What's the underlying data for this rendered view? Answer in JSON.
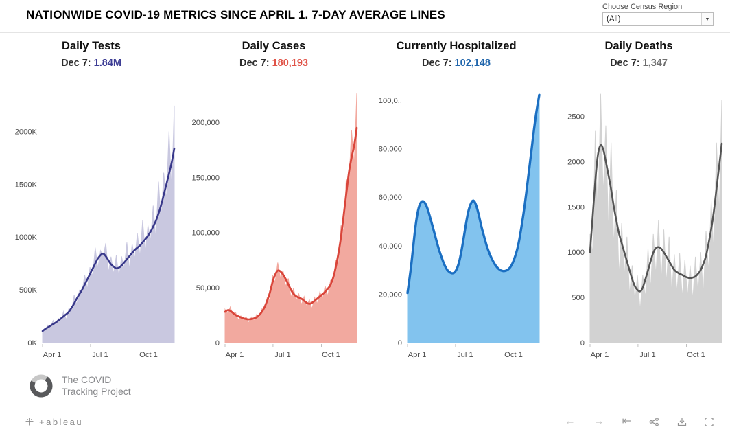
{
  "title": "NATIONWIDE COVID-19 METRICS SINCE APRIL 1. 7-DAY AVERAGE LINES",
  "region_filter": {
    "label": "Choose Census Region",
    "value": "(All)"
  },
  "chart_data": [
    {
      "type": "area",
      "title": "Daily Tests",
      "date_label": "Dec 7:",
      "value": "1.84M",
      "value_color": "#3c3c94",
      "line_color": "#38388a",
      "fill_color": "#c9c8e0",
      "line_width": 2.6,
      "y_unit": "thousands",
      "ymax": 2400,
      "y_ticks": [
        {
          "v": 0,
          "label": "0K"
        },
        {
          "v": 500,
          "label": "500K"
        },
        {
          "v": 1000,
          "label": "1000K"
        },
        {
          "v": 1500,
          "label": "1500K"
        },
        {
          "v": 2000,
          "label": "2000K"
        }
      ],
      "x_ticks": [
        {
          "f": 0.0,
          "label": "Apr 1"
        },
        {
          "f": 0.364,
          "label": "Jul 1"
        },
        {
          "f": 0.732,
          "label": "Oct 1"
        }
      ],
      "x_start": "Apr 1",
      "x_end": "Dec 7",
      "avg_7day": [
        110,
        130,
        145,
        160,
        175,
        190,
        210,
        230,
        250,
        270,
        290,
        330,
        370,
        420,
        460,
        500,
        550,
        600,
        650,
        700,
        750,
        800,
        830,
        850,
        820,
        780,
        740,
        720,
        700,
        710,
        730,
        760,
        790,
        820,
        850,
        880,
        900,
        920,
        950,
        980,
        1010,
        1050,
        1100,
        1150,
        1220,
        1300,
        1400,
        1500,
        1600,
        1700,
        1840
      ],
      "daily_noise": [
        1.05,
        0.82,
        1.15,
        0.9,
        1.2,
        0.85,
        1.1,
        0.93,
        1.18,
        0.8,
        1.12,
        0.9,
        1.22,
        0.86,
        1.08,
        0.95,
        1.17,
        0.84,
        1.1,
        0.9,
        1.2,
        0.88,
        1.05,
        0.96,
        1.15,
        0.85,
        1.1,
        0.9,
        1.18,
        0.86,
        1.12,
        0.92,
        1.2,
        0.84,
        1.1,
        0.9,
        1.15,
        0.88,
        1.22,
        0.86,
        1.1,
        0.92,
        1.18,
        0.85,
        1.25,
        0.88,
        1.15,
        0.9,
        1.25,
        0.85,
        1.22
      ]
    },
    {
      "type": "area",
      "title": "Daily Cases",
      "date_label": "Dec 7:",
      "value": "180,193",
      "value_color": "#e05348",
      "line_color": "#d9453a",
      "fill_color": "#f2a99f",
      "line_width": 2.8,
      "ymax": 230000,
      "y_ticks": [
        {
          "v": 0,
          "label": "0"
        },
        {
          "v": 50000,
          "label": "50,000"
        },
        {
          "v": 100000,
          "label": "100,000"
        },
        {
          "v": 150000,
          "label": "150,000"
        },
        {
          "v": 200000,
          "label": "200,000"
        }
      ],
      "x_ticks": [
        {
          "f": 0.0,
          "label": "Apr 1"
        },
        {
          "f": 0.364,
          "label": "Jul 1"
        },
        {
          "f": 0.732,
          "label": "Oct 1"
        }
      ],
      "x_start": "Apr 1",
      "x_end": "Dec 7",
      "avg_7day": [
        28000,
        30000,
        29000,
        27000,
        25000,
        24000,
        23000,
        22000,
        21500,
        21000,
        21500,
        22000,
        23000,
        25000,
        28000,
        32000,
        38000,
        45000,
        55000,
        62000,
        66000,
        65000,
        62000,
        58000,
        53000,
        48000,
        44000,
        42000,
        41000,
        40000,
        38000,
        36000,
        35000,
        36000,
        38000,
        40000,
        42000,
        44000,
        46000,
        49000,
        52000,
        58000,
        68000,
        80000,
        95000,
        115000,
        135000,
        155000,
        168000,
        178000,
        195000
      ],
      "daily_noise": [
        1.08,
        0.88,
        1.12,
        0.9,
        1.1,
        0.86,
        1.06,
        0.92,
        1.1,
        0.85,
        1.08,
        0.9,
        1.12,
        0.86,
        1.1,
        0.92,
        1.08,
        0.85,
        1.12,
        0.88,
        1.1,
        0.9,
        1.06,
        0.88,
        1.1,
        0.85,
        1.12,
        0.9,
        1.08,
        0.86,
        1.1,
        0.9,
        1.12,
        0.85,
        1.08,
        0.88,
        1.1,
        0.9,
        1.12,
        0.86,
        1.08,
        0.9,
        1.1,
        0.85,
        1.12,
        0.88,
        1.1,
        0.92,
        1.15,
        0.9,
        1.16
      ]
    },
    {
      "type": "area",
      "title": "Currently Hospitalized",
      "date_label": "Dec 7:",
      "value": "102,148",
      "value_color": "#2166ac",
      "line_color": "#1b6fc2",
      "fill_color": "#82c3ee",
      "line_width": 3.4,
      "ymax": 104500,
      "y_ticks": [
        {
          "v": 0,
          "label": "0"
        },
        {
          "v": 20000,
          "label": "20,000"
        },
        {
          "v": 40000,
          "label": "40,000"
        },
        {
          "v": 60000,
          "label": "60,000"
        },
        {
          "v": 80000,
          "label": "80,000"
        },
        {
          "v": 100000,
          "label": "100,0.."
        }
      ],
      "x_ticks": [
        {
          "f": 0.0,
          "label": "Apr 1"
        },
        {
          "f": 0.364,
          "label": "Jul 1"
        },
        {
          "f": 0.732,
          "label": "Oct 1"
        }
      ],
      "x_start": "Apr 1",
      "x_end": "Dec 7",
      "avg_7day": [
        20500,
        28000,
        38000,
        48000,
        55000,
        58000,
        58500,
        57000,
        54000,
        50000,
        46000,
        42000,
        38000,
        35000,
        32000,
        30000,
        29000,
        28500,
        29000,
        31000,
        35000,
        41000,
        48000,
        54000,
        57500,
        59000,
        57000,
        53000,
        48000,
        44000,
        40000,
        37000,
        34500,
        32500,
        31000,
        30000,
        29500,
        29500,
        30000,
        31000,
        33000,
        36000,
        40000,
        46000,
        53000,
        61000,
        70000,
        79000,
        88000,
        96000,
        102148
      ],
      "daily_noise": null
    },
    {
      "type": "area",
      "title": "Daily Deaths",
      "date_label": "Dec 7:",
      "value": "1,347",
      "value_color": "#6e6e6e",
      "line_color": "#545454",
      "fill_color": "#d2d2d2",
      "line_width": 2.6,
      "ymax": 2800,
      "y_ticks": [
        {
          "v": 0,
          "label": "0"
        },
        {
          "v": 500,
          "label": "500"
        },
        {
          "v": 1000,
          "label": "1000"
        },
        {
          "v": 1500,
          "label": "1500"
        },
        {
          "v": 2000,
          "label": "2000"
        },
        {
          "v": 2500,
          "label": "2500"
        }
      ],
      "x_ticks": [
        {
          "f": 0.0,
          "label": "Apr 1"
        },
        {
          "f": 0.364,
          "label": "Jul 1"
        },
        {
          "f": 0.732,
          "label": "Oct 1"
        }
      ],
      "x_start": "Apr 1",
      "x_end": "Dec 7",
      "avg_7day": [
        1000,
        1400,
        1800,
        2100,
        2200,
        2150,
        2000,
        1850,
        1700,
        1500,
        1350,
        1200,
        1100,
        1000,
        900,
        800,
        700,
        620,
        580,
        560,
        600,
        700,
        800,
        900,
        1000,
        1050,
        1060,
        1040,
        1000,
        950,
        900,
        850,
        800,
        780,
        760,
        750,
        730,
        720,
        710,
        720,
        730,
        760,
        800,
        870,
        950,
        1100,
        1250,
        1450,
        1700,
        1950,
        2200
      ],
      "daily_noise": [
        1.2,
        0.7,
        1.3,
        0.62,
        1.25,
        0.75,
        1.2,
        0.65,
        1.3,
        0.7,
        1.25,
        0.6,
        1.2,
        0.72,
        1.3,
        0.65,
        1.22,
        0.7,
        1.28,
        0.62,
        1.25,
        0.7,
        1.3,
        0.65,
        1.2,
        0.7,
        1.28,
        0.6,
        1.25,
        0.68,
        1.3,
        0.62,
        1.22,
        0.7,
        1.3,
        0.65,
        1.25,
        0.7,
        1.2,
        0.65,
        1.3,
        0.68,
        1.25,
        0.6,
        1.3,
        0.7,
        1.25,
        0.65,
        1.3,
        0.72,
        1.22
      ]
    }
  ],
  "footer_logo": {
    "line1": "The COVID",
    "line2": "Tracking Project"
  },
  "toolbar": {
    "brand": "+ableau"
  }
}
